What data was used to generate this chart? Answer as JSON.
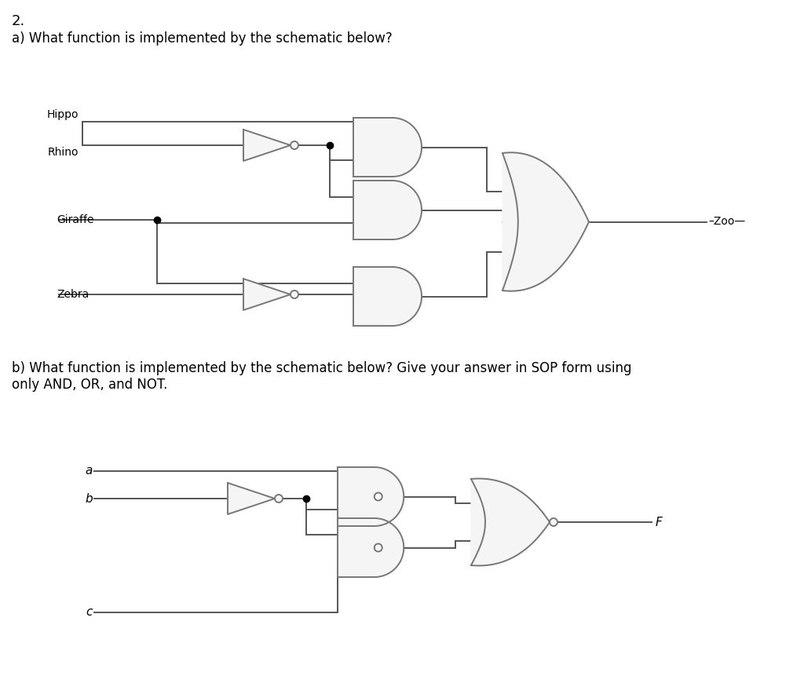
{
  "title_a": "2.",
  "subtitle_a": "a) What function is implemented by the schematic below?",
  "subtitle_b": "b) What function is implemented by the schematic below? Give your answer in SOP form using\nonly AND, OR, and NOT.",
  "bg_color": "#ffffff",
  "line_color": "#555555",
  "text_color": "#000000",
  "gate_fill": "#f5f5f5",
  "gate_edge": "#777777",
  "dot_color": "#000000",
  "lw": 1.4
}
